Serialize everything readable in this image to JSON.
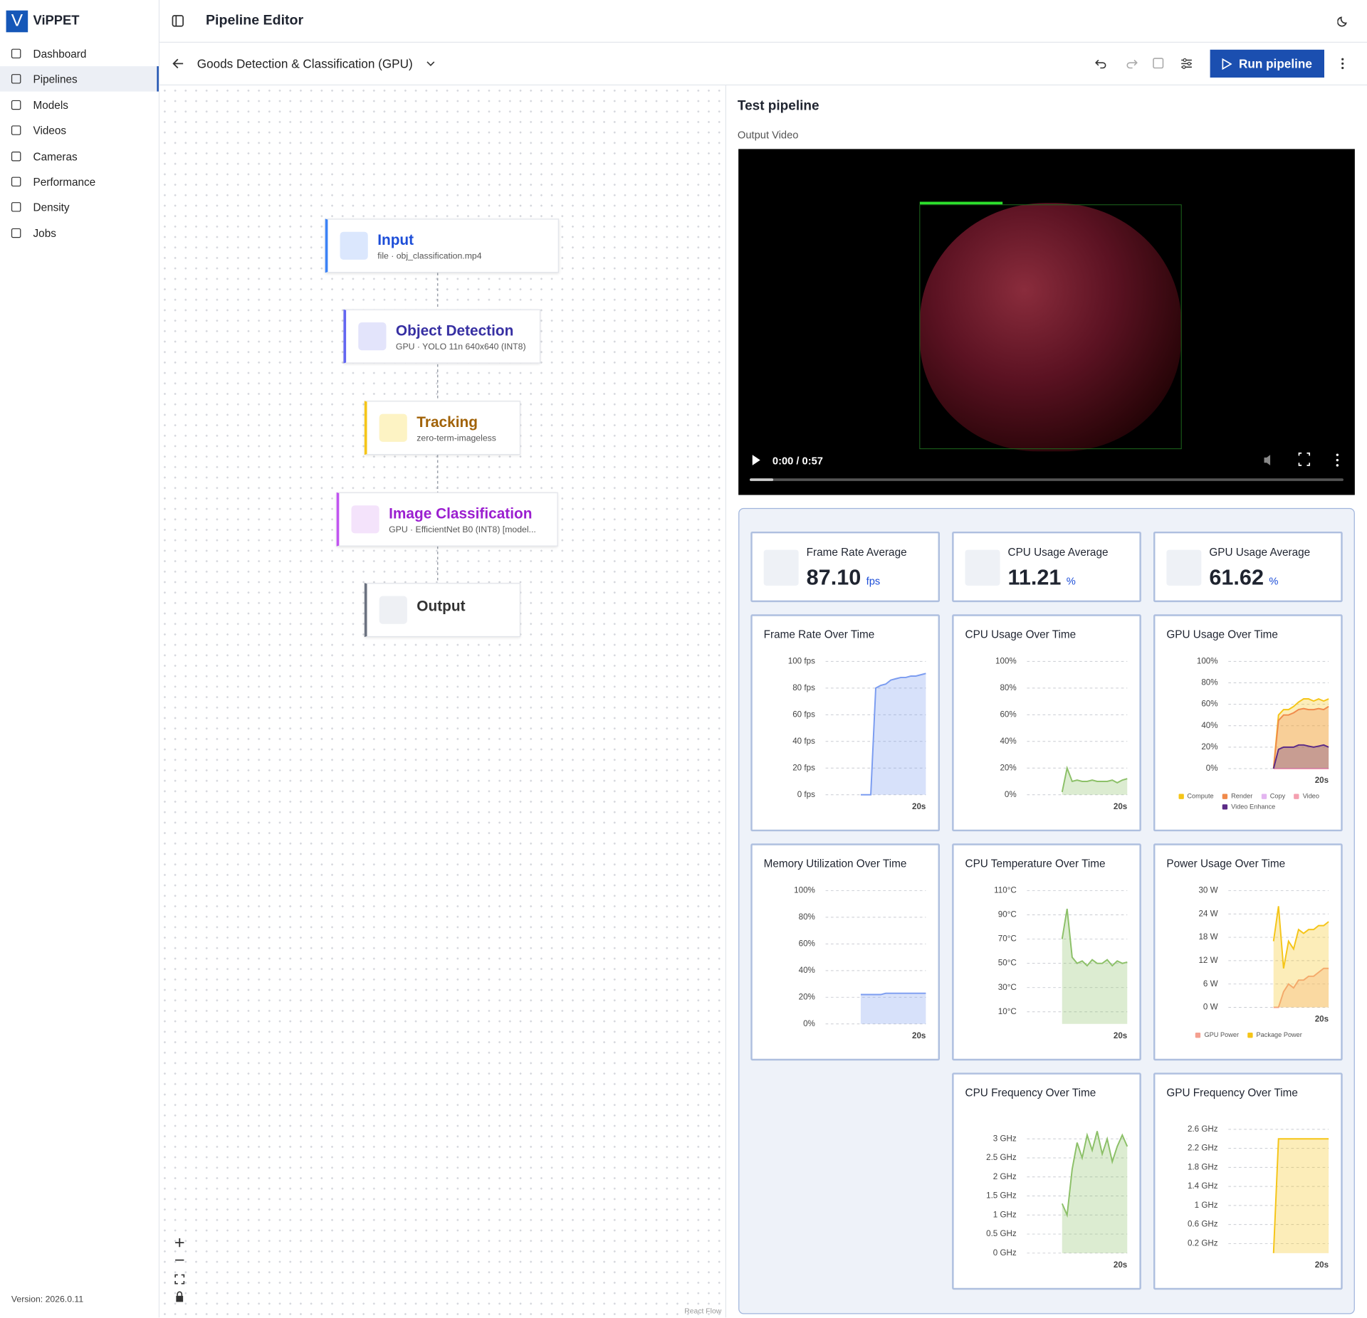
{
  "sidebar": {
    "logo": "V",
    "brand": "ViPPET",
    "nav": [
      "Dashboard",
      "Pipelines",
      "Models",
      "Videos",
      "Cameras",
      "Performance",
      "Density",
      "Jobs"
    ],
    "version": "Version: 2026.0.11"
  },
  "header": {
    "title": "Pipeline Editor"
  },
  "toolbar": {
    "pipeline_name": "Goods Detection & Classification (GPU)",
    "run_button": "Run pipeline"
  },
  "pipeline": {
    "nodes": [
      {
        "title": "Input",
        "subtitle": "file · obj_classification.mp4"
      },
      {
        "title": "Object Detection",
        "subtitle": "GPU · YOLO 11n 640x640 (INT8)"
      },
      {
        "title": "Tracking",
        "subtitle": "zero-term-imageless"
      },
      {
        "title": "Image Classification",
        "subtitle": "GPU · EfficientNet B0 (INT8) [model..."
      },
      {
        "title": "Output"
      }
    ],
    "attribution": "React Flow"
  },
  "test_panel": {
    "title": "Test pipeline",
    "video_label": "Output Video",
    "video_time": "0:00 / 0:57"
  },
  "metrics": [
    {
      "label": "Frame Rate Average",
      "value": "87.10",
      "unit": "fps"
    },
    {
      "label": "CPU Usage Average",
      "value": "11.21",
      "unit": "%"
    },
    {
      "label": "GPU Usage Average",
      "value": "61.62",
      "unit": "%"
    }
  ],
  "chart_data": [
    {
      "type": "area",
      "title": "Frame Rate Over Time",
      "grid": true,
      "xlim": [
        0,
        20
      ],
      "xticks": [
        {
          "value": 20,
          "label": "20s"
        }
      ],
      "ylim": [
        0,
        100
      ],
      "yticks": [
        {
          "value": 0,
          "label": "0 fps"
        },
        {
          "value": 20,
          "label": "20 fps"
        },
        {
          "value": 40,
          "label": "40 fps"
        },
        {
          "value": 60,
          "label": "60 fps"
        },
        {
          "value": 80,
          "label": "80 fps"
        },
        {
          "value": 100,
          "label": "100 fps"
        }
      ],
      "x": [
        7,
        8,
        9,
        10,
        11,
        12,
        13,
        14,
        15,
        16,
        17,
        18,
        19,
        20
      ],
      "series": [
        {
          "color": "#7b9cf0",
          "values": [
            0,
            0,
            0,
            80,
            82,
            83,
            86,
            87,
            88,
            88,
            89,
            89,
            90,
            91
          ]
        }
      ]
    },
    {
      "type": "area",
      "title": "CPU Usage Over Time",
      "grid": true,
      "xlim": [
        0,
        20
      ],
      "xticks": [
        {
          "value": 20,
          "label": "20s"
        }
      ],
      "ylim": [
        0,
        100
      ],
      "yticks": [
        {
          "value": 0,
          "label": "0%"
        },
        {
          "value": 20,
          "label": "20%"
        },
        {
          "value": 40,
          "label": "40%"
        },
        {
          "value": 60,
          "label": "60%"
        },
        {
          "value": 80,
          "label": "80%"
        },
        {
          "value": 100,
          "label": "100%"
        }
      ],
      "x": [
        7,
        8,
        9,
        10,
        11,
        12,
        13,
        14,
        15,
        16,
        17,
        18,
        19,
        20
      ],
      "series": [
        {
          "color": "#8cc068",
          "values": [
            2,
            20,
            10,
            11,
            10,
            10,
            11,
            10,
            10,
            10,
            11,
            9,
            11,
            12
          ]
        }
      ]
    },
    {
      "type": "area",
      "title": "GPU Usage Over Time",
      "grid": true,
      "legend": "bottom",
      "xlim": [
        0,
        20
      ],
      "xticks": [
        {
          "value": 20,
          "label": "20s"
        }
      ],
      "ylim": [
        0,
        100
      ],
      "yticks": [
        {
          "value": 0,
          "label": "0%"
        },
        {
          "value": 20,
          "label": "20%"
        },
        {
          "value": 40,
          "label": "40%"
        },
        {
          "value": 60,
          "label": "60%"
        },
        {
          "value": 80,
          "label": "80%"
        },
        {
          "value": 100,
          "label": "100%"
        }
      ],
      "x": [
        9,
        10,
        11,
        12,
        13,
        14,
        15,
        16,
        17,
        18,
        19,
        20
      ],
      "series": [
        {
          "name": "Compute",
          "color": "#f5c518",
          "values": [
            0,
            50,
            55,
            55,
            58,
            62,
            65,
            65,
            63,
            65,
            63,
            65
          ]
        },
        {
          "name": "Render",
          "color": "#f08a4b",
          "values": [
            0,
            45,
            50,
            50,
            52,
            55,
            56,
            55,
            55,
            56,
            55,
            58
          ]
        },
        {
          "name": "Copy",
          "color": "#e3b5f0",
          "values": [
            0,
            0,
            0,
            0,
            0,
            0,
            0,
            0,
            0,
            0,
            0,
            0
          ]
        },
        {
          "name": "Video",
          "color": "#f4a0b0",
          "values": [
            0,
            0,
            0,
            0,
            0,
            0,
            0,
            0,
            0,
            0,
            0,
            0
          ]
        },
        {
          "name": "Video Enhance",
          "color": "#5b2a86",
          "values": [
            0,
            18,
            20,
            20,
            20,
            22,
            22,
            21,
            20,
            21,
            22,
            20
          ]
        }
      ]
    },
    {
      "type": "area",
      "title": "Memory Utilization Over Time",
      "grid": true,
      "xlim": [
        0,
        20
      ],
      "xticks": [
        {
          "value": 20,
          "label": "20s"
        }
      ],
      "ylim": [
        0,
        100
      ],
      "yticks": [
        {
          "value": 0,
          "label": "0%"
        },
        {
          "value": 20,
          "label": "20%"
        },
        {
          "value": 40,
          "label": "40%"
        },
        {
          "value": 60,
          "label": "60%"
        },
        {
          "value": 80,
          "label": "80%"
        },
        {
          "value": 100,
          "label": "100%"
        }
      ],
      "x": [
        7,
        8,
        9,
        10,
        11,
        12,
        13,
        14,
        15,
        16,
        17,
        18,
        19,
        20
      ],
      "series": [
        {
          "color": "#7b9cf0",
          "values": [
            22,
            22,
            22,
            22,
            22,
            23,
            23,
            23,
            23,
            23,
            23,
            23,
            23,
            23
          ]
        }
      ]
    },
    {
      "type": "area",
      "title": "CPU Temperature Over Time",
      "grid": true,
      "xlim": [
        0,
        20
      ],
      "xticks": [
        {
          "value": 20,
          "label": "20s"
        }
      ],
      "ylim": [
        0,
        110
      ],
      "yticks": [
        {
          "value": 10,
          "label": "10°C"
        },
        {
          "value": 30,
          "label": "30°C"
        },
        {
          "value": 50,
          "label": "50°C"
        },
        {
          "value": 70,
          "label": "70°C"
        },
        {
          "value": 90,
          "label": "90°C"
        },
        {
          "value": 110,
          "label": "110°C"
        }
      ],
      "x": [
        7,
        8,
        9,
        10,
        11,
        12,
        13,
        14,
        15,
        16,
        17,
        18,
        19,
        20
      ],
      "series": [
        {
          "color": "#8cc068",
          "values": [
            70,
            95,
            55,
            50,
            52,
            48,
            53,
            50,
            50,
            53,
            48,
            52,
            50,
            51
          ]
        }
      ]
    },
    {
      "type": "area",
      "title": "Power Usage Over Time",
      "grid": true,
      "legend": "bottom",
      "xlim": [
        0,
        20
      ],
      "xticks": [
        {
          "value": 20,
          "label": "20s"
        }
      ],
      "ylim": [
        0,
        30
      ],
      "yticks": [
        {
          "value": 0,
          "label": "0 W"
        },
        {
          "value": 6,
          "label": "6 W"
        },
        {
          "value": 12,
          "label": "12 W"
        },
        {
          "value": 18,
          "label": "18 W"
        },
        {
          "value": 24,
          "label": "24 W"
        },
        {
          "value": 30,
          "label": "30 W"
        }
      ],
      "x": [
        9,
        10,
        11,
        12,
        13,
        14,
        15,
        16,
        17,
        18,
        19,
        20
      ],
      "series": [
        {
          "name": "GPU Power",
          "color": "#f4a090",
          "values": [
            0,
            0,
            4,
            6,
            5,
            7,
            7,
            8,
            8,
            9,
            10,
            10
          ]
        },
        {
          "name": "Package Power",
          "color": "#f5c518",
          "values": [
            17,
            26,
            10,
            17,
            15,
            20,
            19,
            20,
            20,
            21,
            21,
            22
          ]
        }
      ]
    },
    {
      "type": "area",
      "title": "CPU Frequency Over Time",
      "grid": true,
      "xlim": [
        0,
        20
      ],
      "xticks": [
        {
          "value": 20,
          "label": "20s"
        }
      ],
      "ylim": [
        0,
        3.5
      ],
      "yticks": [
        {
          "value": 0,
          "label": "0 GHz"
        },
        {
          "value": 0.5,
          "label": "0.5 GHz"
        },
        {
          "value": 1,
          "label": "1 GHz"
        },
        {
          "value": 1.5,
          "label": "1.5 GHz"
        },
        {
          "value": 2,
          "label": "2 GHz"
        },
        {
          "value": 2.5,
          "label": "2.5 GHz"
        },
        {
          "value": 3,
          "label": "3 GHz"
        }
      ],
      "x": [
        7,
        8,
        9,
        10,
        11,
        12,
        13,
        14,
        15,
        16,
        17,
        18,
        19,
        20
      ],
      "series": [
        {
          "color": "#8cc068",
          "values": [
            1.3,
            1.0,
            2.2,
            2.9,
            2.5,
            3.1,
            2.7,
            3.2,
            2.6,
            3.0,
            2.4,
            2.8,
            3.1,
            2.8
          ]
        }
      ]
    },
    {
      "type": "area",
      "title": "GPU Frequency Over Time",
      "grid": true,
      "xlim": [
        0,
        20
      ],
      "xticks": [
        {
          "value": 20,
          "label": "20s"
        }
      ],
      "ylim": [
        0,
        2.8
      ],
      "yticks": [
        {
          "value": 0.2,
          "label": "0.2 GHz"
        },
        {
          "value": 0.6,
          "label": "0.6 GHz"
        },
        {
          "value": 1,
          "label": "1 GHz"
        },
        {
          "value": 1.4,
          "label": "1.4 GHz"
        },
        {
          "value": 1.8,
          "label": "1.8 GHz"
        },
        {
          "value": 2.2,
          "label": "2.2 GHz"
        },
        {
          "value": 2.6,
          "label": "2.6 GHz"
        }
      ],
      "x": [
        9,
        10,
        11,
        12,
        13,
        14,
        15,
        16,
        17,
        18,
        19,
        20
      ],
      "series": [
        {
          "color": "#f5c518",
          "values": [
            0,
            2.4,
            2.4,
            2.4,
            2.4,
            2.4,
            2.4,
            2.4,
            2.4,
            2.4,
            2.4,
            2.4
          ]
        }
      ]
    }
  ]
}
